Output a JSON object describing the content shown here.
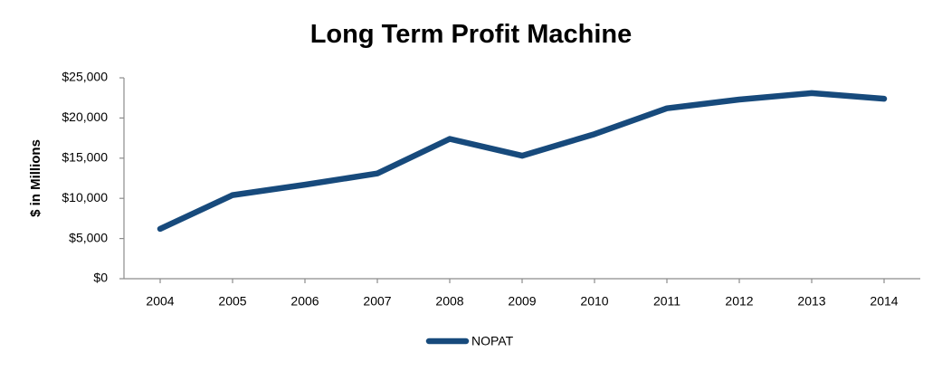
{
  "chart_data": {
    "type": "line",
    "title": "Long Term Profit Machine",
    "xlabel": "",
    "ylabel": "$ in Millions",
    "categories": [
      "2004",
      "2005",
      "2006",
      "2007",
      "2008",
      "2009",
      "2010",
      "2011",
      "2012",
      "2013",
      "2014"
    ],
    "series": [
      {
        "name": "NOPAT",
        "color": "#174a7c",
        "values": [
          6200,
          10400,
          11700,
          13100,
          17400,
          15300,
          18000,
          21200,
          22300,
          23100,
          22400
        ]
      }
    ],
    "ylim": [
      0,
      25000
    ],
    "yticks": [
      0,
      5000,
      10000,
      15000,
      20000,
      25000
    ],
    "ytick_labels": [
      "$0",
      "$5,000",
      "$10,000",
      "$15,000",
      "$20,000",
      "$25,000"
    ],
    "grid": false,
    "legend_position": "bottom"
  }
}
